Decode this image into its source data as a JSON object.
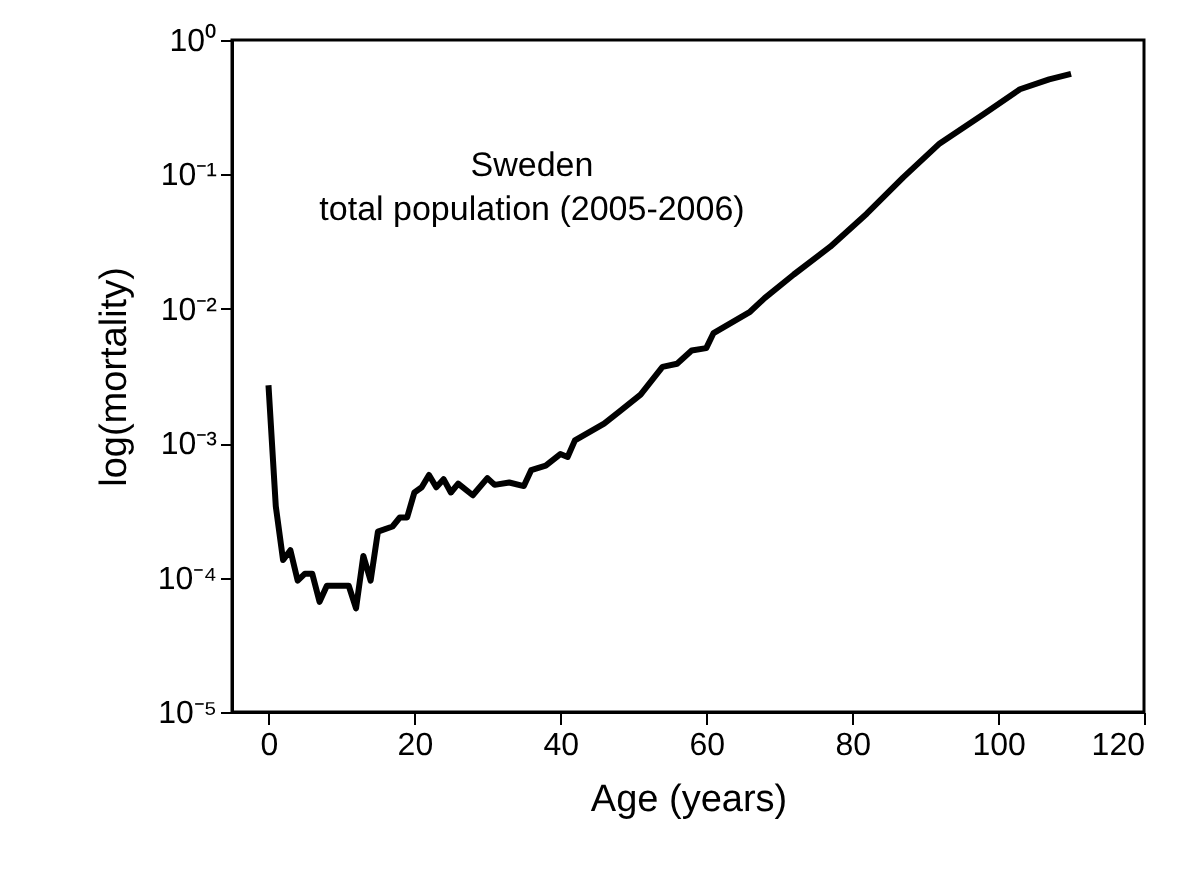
{
  "chart_data": {
    "type": "line",
    "xlabel": "Age (years)",
    "ylabel": "log(mortality)",
    "annotations": [
      "Sweden",
      "total population (2005-2006)"
    ],
    "log": "y",
    "grid": false,
    "marker": "none",
    "line_style": "solid",
    "xlim": [
      -5,
      120
    ],
    "xticks": [
      0,
      20,
      40,
      60,
      80,
      100,
      120
    ],
    "ylim": [
      1e-05,
      1
    ],
    "yticks": [
      {
        "value": 1e-05,
        "label": "10⁻⁵"
      },
      {
        "value": 0.0001,
        "label": "10⁻⁴"
      },
      {
        "value": 0.001,
        "label": "10⁻³"
      },
      {
        "value": 0.01,
        "label": "10⁻²"
      },
      {
        "value": 0.1,
        "label": "10⁻¹"
      },
      {
        "value": 1,
        "label": "10⁰"
      }
    ],
    "series": [
      {
        "color": "#000000",
        "x": [
          0,
          1,
          2,
          3,
          4,
          5,
          6,
          7,
          8,
          11,
          12,
          13,
          14,
          15,
          17,
          18,
          19,
          20,
          21,
          22,
          23,
          24,
          25,
          26,
          28,
          30,
          31,
          33,
          35,
          36,
          38,
          40,
          41,
          42,
          46,
          48,
          51,
          54,
          56,
          58,
          60,
          61,
          66,
          68,
          72,
          77,
          82,
          87,
          92,
          98,
          103,
          107,
          110
        ],
        "values": [
          0.0027,
          0.00034,
          0.000135,
          0.00016,
          9.5e-05,
          0.000107,
          0.000107,
          6.6e-05,
          8.7e-05,
          8.7e-05,
          5.9e-05,
          0.000145,
          9.5e-05,
          0.00022,
          0.00024,
          0.00028,
          0.00028,
          0.00043,
          0.00047,
          0.00058,
          0.00047,
          0.00054,
          0.00043,
          0.0005,
          0.00041,
          0.00055,
          0.00049,
          0.00051,
          0.00048,
          0.00063,
          0.00068,
          0.00083,
          0.00079,
          0.00105,
          0.0014,
          0.0017,
          0.0023,
          0.0037,
          0.0039,
          0.0049,
          0.0051,
          0.0066,
          0.0095,
          0.012,
          0.018,
          0.029,
          0.051,
          0.095,
          0.17,
          0.28,
          0.43,
          0.51,
          0.56
        ]
      }
    ]
  }
}
